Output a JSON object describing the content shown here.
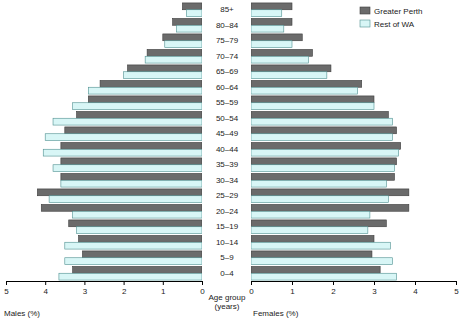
{
  "chart_data": [
    {
      "type": "bar",
      "orientation": "horizontal",
      "xlabel": "Males (%)",
      "ylabel": "Age group (years)",
      "categories": [
        "0–4",
        "5–9",
        "10–14",
        "15–19",
        "20–24",
        "25–29",
        "30–34",
        "35–39",
        "40–44",
        "45–49",
        "50–54",
        "55–59",
        "60–64",
        "65–69",
        "70–74",
        "75–79",
        "80–84",
        "85+"
      ],
      "xlim": [
        0,
        5
      ],
      "xticks": [
        0,
        1,
        2,
        3,
        4,
        5
      ],
      "series": [
        {
          "color": "#6b6b6b",
          "values": [
            3.3,
            3.05,
            3.15,
            3.4,
            4.1,
            4.2,
            3.6,
            3.6,
            3.6,
            3.5,
            3.2,
            2.9,
            2.6,
            1.9,
            1.4,
            1.0,
            0.75,
            0.5
          ]
        },
        {
          "color": "#d8f6f6",
          "values": [
            3.65,
            3.5,
            3.5,
            3.2,
            3.3,
            3.9,
            3.6,
            3.8,
            4.05,
            4.0,
            3.8,
            3.3,
            2.9,
            2.0,
            1.45,
            0.95,
            0.65,
            0.4
          ]
        }
      ]
    },
    {
      "type": "bar",
      "orientation": "horizontal",
      "xlabel": "Females (%)",
      "legend": "upper right",
      "xlim": [
        0,
        5
      ],
      "xticks": [
        0,
        1,
        2,
        3,
        4,
        5
      ],
      "series": [
        {
          "name": "Greater Perth",
          "color": "#6b6b6b",
          "values": [
            3.15,
            2.95,
            3.0,
            3.3,
            3.85,
            3.85,
            3.5,
            3.55,
            3.65,
            3.55,
            3.35,
            3.0,
            2.7,
            1.95,
            1.5,
            1.25,
            1.0,
            1.0
          ]
        },
        {
          "name": "Rest of WA",
          "color": "#d8f6f6",
          "values": [
            3.55,
            3.45,
            3.4,
            2.85,
            2.9,
            3.35,
            3.3,
            3.5,
            3.6,
            3.45,
            3.45,
            3.0,
            2.6,
            1.85,
            1.4,
            1.0,
            0.8,
            0.75
          ]
        }
      ]
    }
  ]
}
